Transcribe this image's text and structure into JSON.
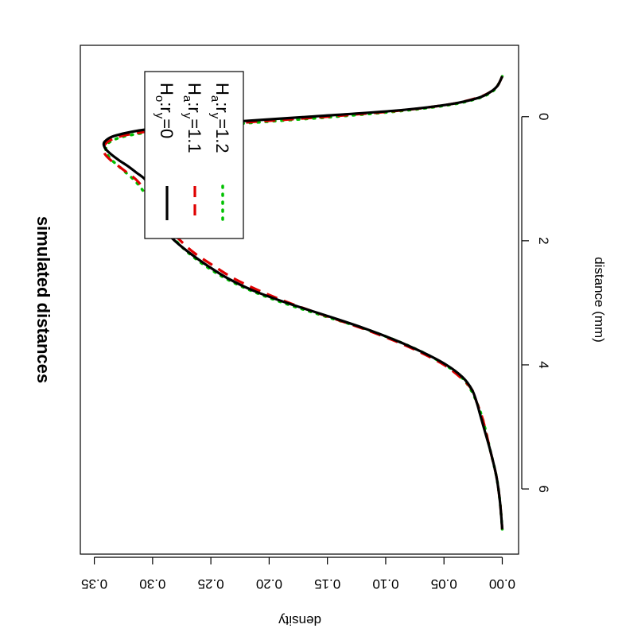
{
  "chart_data": {
    "type": "line",
    "title": "simulated distances",
    "xlabel": "distance (mm)",
    "ylabel": "density",
    "xlim": [
      -1.15,
      7.05
    ],
    "ylim": [
      -0.014,
      0.362
    ],
    "xticks": [
      0,
      2,
      4,
      6
    ],
    "xtick_labels": [
      "0",
      "2",
      "4",
      "6"
    ],
    "yticks": [
      0.0,
      0.05,
      0.1,
      0.15,
      0.2,
      0.25,
      0.3,
      0.35
    ],
    "ytick_labels": [
      "0.00",
      "0.05",
      "0.10",
      "0.15",
      "0.20",
      "0.25",
      "0.30",
      "0.35"
    ],
    "orientation": "rotated-90-clockwise",
    "grid": false,
    "legend_position": "top-left",
    "series": [
      {
        "name": "H_o:r_y=0",
        "legend_parts": [
          "H",
          "o",
          ":r",
          "y",
          "=0"
        ],
        "color": "#000000",
        "dash": "solid",
        "x": [
          -0.65,
          -0.5,
          -0.4,
          -0.3,
          -0.2,
          -0.1,
          0.0,
          0.1,
          0.2,
          0.3,
          0.4,
          0.5,
          0.6,
          0.7,
          0.8,
          0.9,
          1.0,
          1.1,
          1.2,
          1.3,
          1.4,
          1.6,
          1.8,
          2.0,
          2.2,
          2.4,
          2.6,
          2.8,
          3.0,
          3.2,
          3.4,
          3.6,
          3.8,
          4.0,
          4.2,
          4.4,
          4.6,
          4.8,
          5.0,
          5.4,
          5.8,
          6.2,
          6.65
        ],
        "y": [
          0.0,
          0.004,
          0.01,
          0.021,
          0.045,
          0.09,
          0.165,
          0.245,
          0.303,
          0.331,
          0.341,
          0.341,
          0.336,
          0.329,
          0.321,
          0.314,
          0.307,
          0.303,
          0.303,
          0.303,
          0.302,
          0.298,
          0.291,
          0.281,
          0.268,
          0.253,
          0.236,
          0.214,
          0.185,
          0.152,
          0.12,
          0.092,
          0.068,
          0.048,
          0.034,
          0.026,
          0.022,
          0.019,
          0.016,
          0.01,
          0.005,
          0.002,
          0.0
        ]
      },
      {
        "name": "H_a:r_y=1.1",
        "legend_parts": [
          "H",
          "a",
          ":r",
          "y",
          "=1.1"
        ],
        "color": "#df0000",
        "dash": "dashed",
        "x": [
          -0.65,
          -0.5,
          -0.4,
          -0.3,
          -0.2,
          -0.1,
          0.0,
          0.1,
          0.2,
          0.3,
          0.4,
          0.5,
          0.6,
          0.7,
          0.8,
          0.9,
          1.0,
          1.1,
          1.2,
          1.3,
          1.4,
          1.6,
          1.8,
          2.0,
          2.2,
          2.4,
          2.6,
          2.8,
          3.0,
          3.2,
          3.4,
          3.6,
          3.8,
          4.0,
          4.2,
          4.4,
          4.6,
          4.8,
          5.0,
          5.4,
          5.8,
          6.2,
          6.65
        ],
        "y": [
          0.0,
          0.004,
          0.01,
          0.022,
          0.045,
          0.087,
          0.15,
          0.225,
          0.287,
          0.324,
          0.338,
          0.342,
          0.341,
          0.336,
          0.329,
          0.322,
          0.315,
          0.31,
          0.306,
          0.303,
          0.3,
          0.294,
          0.286,
          0.276,
          0.264,
          0.248,
          0.231,
          0.209,
          0.183,
          0.153,
          0.122,
          0.094,
          0.07,
          0.05,
          0.036,
          0.026,
          0.022,
          0.018,
          0.015,
          0.01,
          0.005,
          0.002,
          0.0
        ]
      },
      {
        "name": "H_a:r_y=1.2",
        "legend_parts": [
          "H",
          "a",
          ":r",
          "y",
          "=1.2"
        ],
        "color": "#00c000",
        "dash": "dotted",
        "x": [
          -0.65,
          -0.5,
          -0.4,
          -0.3,
          -0.2,
          -0.1,
          0.0,
          0.1,
          0.2,
          0.3,
          0.4,
          0.5,
          0.6,
          0.7,
          0.8,
          0.9,
          1.0,
          1.1,
          1.2,
          1.3,
          1.4,
          1.6,
          1.8,
          2.0,
          2.2,
          2.4,
          2.6,
          2.8,
          3.0,
          3.2,
          3.4,
          3.6,
          3.8,
          4.0,
          4.2,
          4.4,
          4.6,
          4.8,
          5.0,
          5.4,
          5.8,
          6.2,
          6.65
        ],
        "y": [
          0.0,
          0.004,
          0.009,
          0.02,
          0.042,
          0.083,
          0.143,
          0.216,
          0.28,
          0.32,
          0.336,
          0.34,
          0.339,
          0.335,
          0.329,
          0.323,
          0.317,
          0.312,
          0.308,
          0.305,
          0.302,
          0.296,
          0.289,
          0.28,
          0.269,
          0.255,
          0.238,
          0.216,
          0.188,
          0.155,
          0.121,
          0.092,
          0.068,
          0.049,
          0.035,
          0.027,
          0.022,
          0.018,
          0.015,
          0.01,
          0.005,
          0.002,
          0.0
        ]
      }
    ]
  }
}
